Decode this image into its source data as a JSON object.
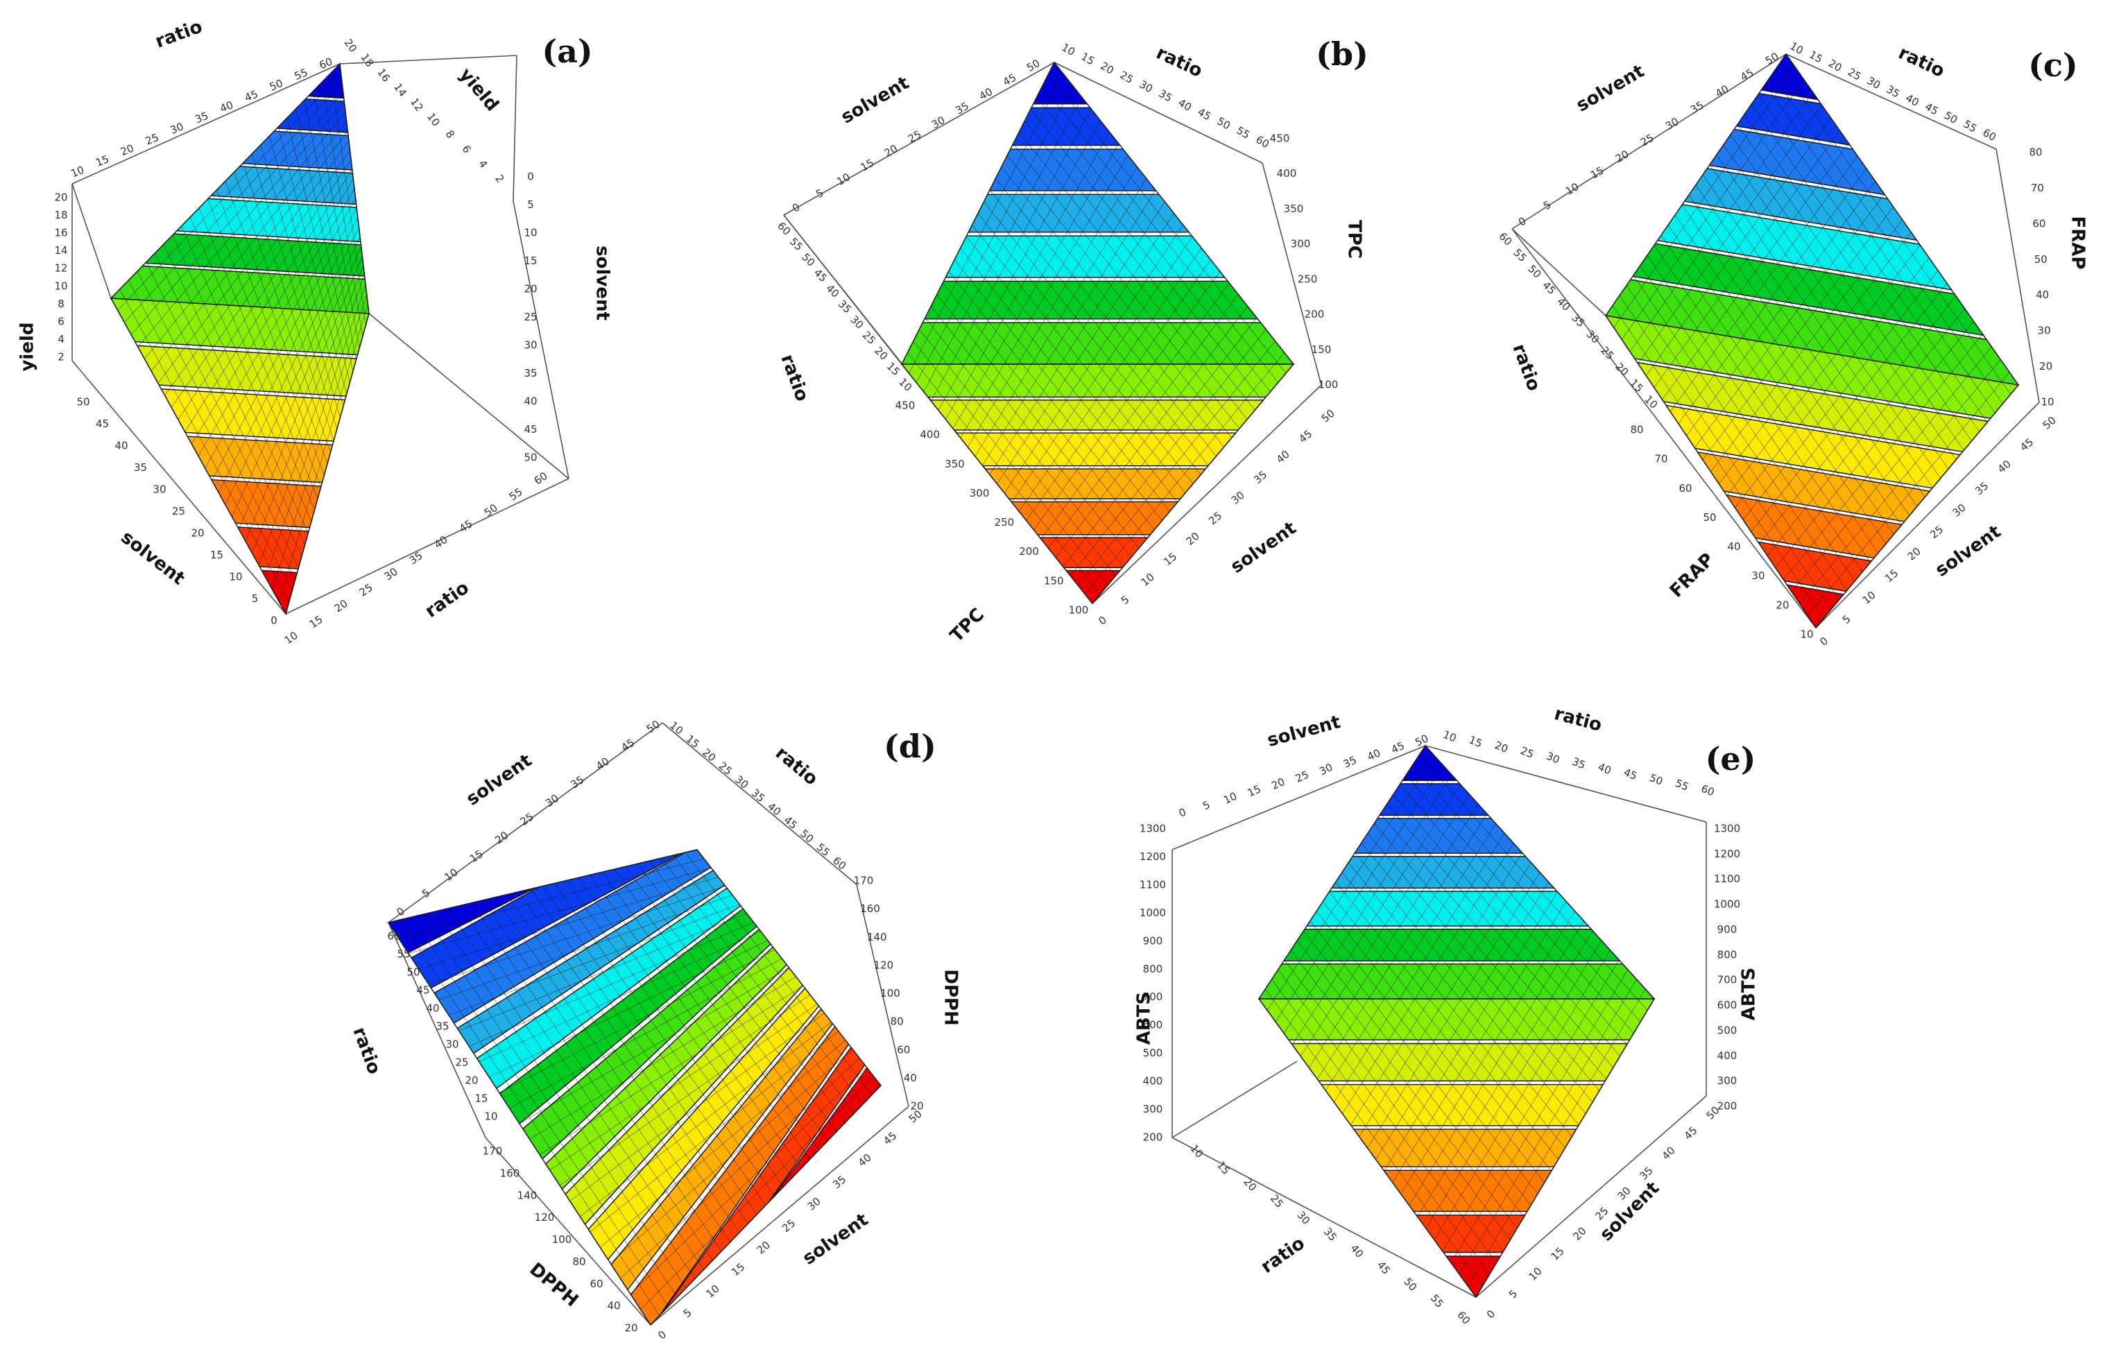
{
  "colors": {
    "bands": [
      "#0000dd",
      "#0a3cf0",
      "#1e78f0",
      "#1eaee8",
      "#00f0f0",
      "#00cc22",
      "#3ee00e",
      "#88f000",
      "#d4f000",
      "#ffea00",
      "#ffb000",
      "#ff7a00",
      "#ff3a00",
      "#ee0000"
    ],
    "box": "#555555",
    "mesh": "#1a1a1a"
  },
  "chart_data": [
    {
      "id": "a",
      "type": "surface",
      "label": "(a)",
      "response": "yield",
      "factors": [
        "ratio",
        "solvent"
      ],
      "axis_labels": [
        "ratio",
        "yield",
        "solvent",
        "yield",
        "solvent",
        "ratio"
      ],
      "ratio_ticks": [
        "10",
        "15",
        "20",
        "25",
        "30",
        "35",
        "40",
        "45",
        "50",
        "55",
        "60"
      ],
      "solvent_ticks": [
        "0",
        "5",
        "10",
        "15",
        "20",
        "25",
        "30",
        "35",
        "40",
        "45",
        "50"
      ],
      "response_ticks": [
        "2",
        "4",
        "6",
        "8",
        "10",
        "12",
        "14",
        "16",
        "18",
        "20"
      ],
      "ratio_range": [
        10,
        60
      ],
      "solvent_range": [
        0,
        50
      ],
      "response_range": [
        2,
        20
      ]
    },
    {
      "id": "b",
      "type": "surface",
      "label": "(b)",
      "response": "TPC",
      "factors": [
        "ratio",
        "solvent"
      ],
      "axis_labels": [
        "solvent",
        "ratio",
        "TPC",
        "ratio",
        "TPC",
        "solvent"
      ],
      "ratio_ticks": [
        "10",
        "15",
        "20",
        "25",
        "30",
        "35",
        "40",
        "45",
        "50",
        "55",
        "60"
      ],
      "solvent_ticks": [
        "0",
        "5",
        "10",
        "15",
        "20",
        "25",
        "30",
        "35",
        "40",
        "45",
        "50"
      ],
      "response_ticks": [
        "100",
        "150",
        "200",
        "250",
        "300",
        "350",
        "400",
        "450"
      ],
      "ratio_range": [
        10,
        60
      ],
      "solvent_range": [
        0,
        50
      ],
      "response_range": [
        100,
        450
      ]
    },
    {
      "id": "c",
      "type": "surface",
      "label": "(c)",
      "response": "FRAP",
      "factors": [
        "ratio",
        "solvent"
      ],
      "axis_labels": [
        "solvent",
        "ratio",
        "FRAP",
        "ratio",
        "FRAP",
        "solvent"
      ],
      "ratio_ticks": [
        "10",
        "15",
        "20",
        "25",
        "30",
        "35",
        "40",
        "45",
        "50",
        "55",
        "60"
      ],
      "solvent_ticks": [
        "0",
        "5",
        "10",
        "15",
        "20",
        "25",
        "30",
        "35",
        "40",
        "45",
        "50"
      ],
      "response_ticks": [
        "10",
        "20",
        "30",
        "40",
        "50",
        "60",
        "70",
        "80"
      ],
      "ratio_range": [
        10,
        60
      ],
      "solvent_range": [
        0,
        50
      ],
      "response_range": [
        10,
        80
      ]
    },
    {
      "id": "d",
      "type": "surface",
      "label": "(d)",
      "response": "DPPH",
      "factors": [
        "ratio",
        "solvent"
      ],
      "axis_labels": [
        "solvent",
        "ratio",
        "DPPH",
        "ratio",
        "DPPH",
        "solvent"
      ],
      "ratio_ticks": [
        "10",
        "15",
        "20",
        "25",
        "30",
        "35",
        "40",
        "45",
        "50",
        "55",
        "60"
      ],
      "solvent_ticks": [
        "0",
        "5",
        "10",
        "15",
        "20",
        "25",
        "30",
        "35",
        "40",
        "45",
        "50"
      ],
      "response_ticks": [
        "20",
        "40",
        "60",
        "80",
        "100",
        "120",
        "140",
        "160",
        "170"
      ],
      "ratio_range": [
        10,
        60
      ],
      "solvent_range": [
        0,
        50
      ],
      "response_range": [
        20,
        170
      ]
    },
    {
      "id": "e",
      "type": "surface",
      "label": "(e)",
      "response": "ABTS",
      "factors": [
        "ratio",
        "solvent"
      ],
      "axis_labels": [
        "solvent",
        "ratio",
        "ABTS",
        "ABTS",
        "ratio",
        "solvent"
      ],
      "ratio_ticks": [
        "10",
        "15",
        "20",
        "25",
        "30",
        "35",
        "40",
        "45",
        "50",
        "55",
        "60"
      ],
      "solvent_ticks": [
        "0",
        "5",
        "10",
        "15",
        "20",
        "25",
        "30",
        "35",
        "40",
        "45",
        "50"
      ],
      "response_ticks": [
        "200",
        "300",
        "400",
        "500",
        "600",
        "700",
        "800",
        "900",
        "1000",
        "1100",
        "1200",
        "1300"
      ],
      "ratio_range": [
        10,
        60
      ],
      "solvent_range": [
        0,
        50
      ],
      "response_range": [
        200,
        1300
      ]
    }
  ]
}
